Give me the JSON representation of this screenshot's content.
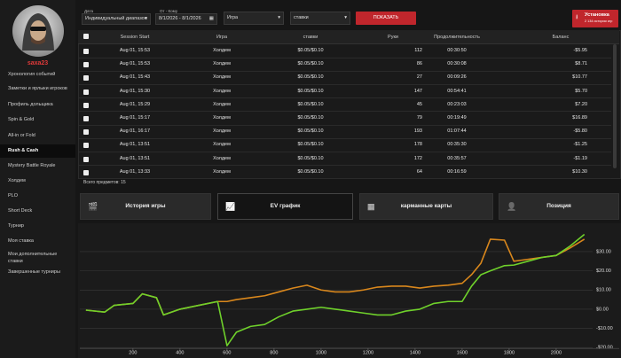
{
  "sidebar": {
    "username": "saxa23",
    "menu": [
      "Хронология событий",
      "Заметки и ярлыки игроков",
      "Профиль дольщика",
      "Spin & Gold",
      "All-in or Fold",
      "Rush & Cash",
      "Mystery Battle Royale",
      "Холдем",
      "PLO",
      "Short Deck",
      "Турнир",
      "Моя ставка",
      "Мои дополнительные ставки",
      "Завершенные турниры"
    ]
  },
  "filters": {
    "date_label": "Дата",
    "date_range_type": "Индивидуальный диапазон",
    "period_label": "От - Кому",
    "period": "8/1/2026 - 8/1/2026",
    "game": "Игра",
    "stakes": "ставки",
    "show_button": "ПОКАЗАТЬ",
    "install_button": "Установка",
    "install_note": "2 134 истории игр"
  },
  "table": {
    "columns": [
      "Session Start",
      "Игра",
      "ставки",
      "Руки",
      "Продолжительность",
      "Баланс"
    ],
    "rows": [
      [
        "Aug 01, 15:53",
        "Холдем",
        "$0.05/$0.10",
        112,
        "00:30:50",
        "-$5.95"
      ],
      [
        "Aug 01, 15:53",
        "Холдем",
        "$0.05/$0.10",
        86,
        "00:30:08",
        "$8.71"
      ],
      [
        "Aug 01, 15:43",
        "Холдем",
        "$0.05/$0.10",
        27,
        "00:09:26",
        "$10.77"
      ],
      [
        "Aug 01, 15:30",
        "Холдем",
        "$0.05/$0.10",
        147,
        "00:54:41",
        "$5.70"
      ],
      [
        "Aug 01, 15:29",
        "Холдем",
        "$0.05/$0.10",
        45,
        "00:23:03",
        "$7.20"
      ],
      [
        "Aug 01, 15:17",
        "Холдем",
        "$0.05/$0.10",
        79,
        "00:19:49",
        "$16.89"
      ],
      [
        "Aug 01, 16:17",
        "Холдем",
        "$0.05/$0.10",
        193,
        "01:07:44",
        "-$5.80"
      ],
      [
        "Aug 01, 13:51",
        "Холдем",
        "$0.05/$0.10",
        178,
        "00:35:30",
        "-$1.25"
      ],
      [
        "Aug 01, 13:51",
        "Холдем",
        "$0.05/$0.10",
        172,
        "00:35:57",
        "-$1.19"
      ],
      [
        "Aug 01, 13:33",
        "Холдем",
        "$0.05/$0.10",
        64,
        "00:16:59",
        "$10.30"
      ]
    ],
    "total": "Всего предметов: 15"
  },
  "tabs": [
    "История игры",
    "EV график",
    "карманные карты",
    "Позиция"
  ],
  "chart_data": {
    "type": "line",
    "x": [
      0,
      80,
      120,
      200,
      240,
      300,
      330,
      400,
      480,
      560,
      600,
      640,
      700,
      760,
      820,
      880,
      940,
      1000,
      1060,
      1120,
      1180,
      1240,
      1300,
      1360,
      1420,
      1480,
      1540,
      1600,
      1640,
      1680,
      1720,
      1780,
      1820,
      1880,
      1940,
      2000,
      2060,
      2120
    ],
    "series": [
      {
        "color": "#d9871c",
        "values": [
          -0.5,
          -1.5,
          2,
          3,
          8,
          6,
          -3,
          0,
          2,
          4,
          4,
          5,
          6,
          7,
          9,
          11,
          12.5,
          10,
          9,
          9,
          10,
          11.5,
          12,
          12,
          11,
          12,
          12.5,
          13.5,
          18,
          24,
          36.5,
          36,
          25,
          26,
          27,
          28,
          32,
          36.5
        ]
      },
      {
        "color": "#6fd12b",
        "values": [
          -0.5,
          -1.5,
          2,
          3,
          8,
          6,
          -3,
          0,
          2,
          4,
          -19,
          -12,
          -9,
          -8,
          -4,
          -1,
          0,
          1,
          0,
          -1,
          -2,
          -3,
          -3,
          -1,
          0,
          3,
          4,
          4,
          12,
          18,
          20,
          22.7,
          23,
          25,
          27,
          28,
          33,
          39
        ]
      }
    ],
    "xlim": [
      -26,
      2155
    ],
    "ylim": [
      -20,
      42
    ],
    "xticks": [
      200,
      400,
      600,
      800,
      1000,
      1200,
      1400,
      1600,
      1800,
      2000
    ],
    "yticks": [
      {
        "value": -20,
        "label": "-$20.00"
      },
      {
        "value": -10,
        "label": "-$10.00"
      },
      {
        "value": 0,
        "label": "$0.00"
      },
      {
        "value": 10,
        "label": "$10.00"
      },
      {
        "value": 20,
        "label": "$20.00"
      },
      {
        "value": 30,
        "label": "$30.00"
      }
    ],
    "grid": true
  }
}
